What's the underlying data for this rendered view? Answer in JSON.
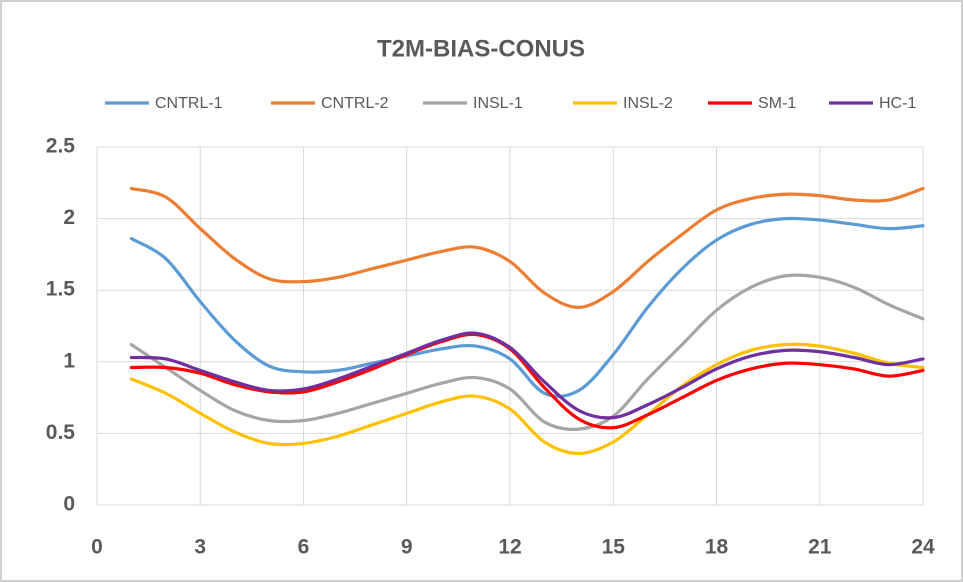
{
  "chart_data": {
    "type": "line",
    "title": "T2M-BIAS-CONUS",
    "x": [
      1,
      2,
      3,
      4,
      5,
      6,
      7,
      8,
      9,
      10,
      11,
      12,
      13,
      14,
      15,
      16,
      17,
      18,
      19,
      20,
      21,
      22,
      23,
      24
    ],
    "series": [
      {
        "name": "CNTRL-1",
        "color": "#5b9bd5",
        "values": [
          1.86,
          1.72,
          1.42,
          1.15,
          0.97,
          0.93,
          0.94,
          0.99,
          1.04,
          1.09,
          1.11,
          1.02,
          0.78,
          0.8,
          1.05,
          1.38,
          1.65,
          1.85,
          1.96,
          2.0,
          1.99,
          1.96,
          1.93,
          1.95
        ]
      },
      {
        "name": "CNTRL-2",
        "color": "#ed7d31",
        "values": [
          2.21,
          2.15,
          1.93,
          1.72,
          1.58,
          1.56,
          1.59,
          1.65,
          1.71,
          1.77,
          1.8,
          1.7,
          1.48,
          1.38,
          1.49,
          1.7,
          1.89,
          2.06,
          2.14,
          2.17,
          2.16,
          2.13,
          2.13,
          2.21
        ]
      },
      {
        "name": "INSL-1",
        "color": "#a5a5a5",
        "values": [
          1.12,
          0.96,
          0.8,
          0.66,
          0.59,
          0.59,
          0.64,
          0.71,
          0.78,
          0.85,
          0.89,
          0.81,
          0.58,
          0.53,
          0.62,
          0.88,
          1.12,
          1.36,
          1.52,
          1.6,
          1.59,
          1.52,
          1.4,
          1.3
        ]
      },
      {
        "name": "INSL-2",
        "color": "#ffc000",
        "values": [
          0.88,
          0.78,
          0.64,
          0.51,
          0.43,
          0.43,
          0.48,
          0.56,
          0.64,
          0.72,
          0.76,
          0.67,
          0.44,
          0.36,
          0.44,
          0.63,
          0.83,
          0.98,
          1.08,
          1.12,
          1.11,
          1.06,
          0.99,
          0.96
        ]
      },
      {
        "name": "SM-1",
        "color": "#ff0000",
        "values": [
          0.96,
          0.96,
          0.92,
          0.84,
          0.79,
          0.79,
          0.86,
          0.95,
          1.05,
          1.14,
          1.19,
          1.09,
          0.82,
          0.6,
          0.54,
          0.63,
          0.75,
          0.87,
          0.95,
          0.99,
          0.98,
          0.95,
          0.9,
          0.94
        ]
      },
      {
        "name": "HC-1",
        "color": "#7030a0",
        "values": [
          1.03,
          1.02,
          0.94,
          0.86,
          0.8,
          0.81,
          0.88,
          0.97,
          1.06,
          1.15,
          1.2,
          1.1,
          0.86,
          0.66,
          0.61,
          0.7,
          0.82,
          0.95,
          1.04,
          1.08,
          1.07,
          1.03,
          0.98,
          1.02
        ]
      }
    ],
    "xlim": [
      0,
      24
    ],
    "xticks": [
      0,
      3,
      6,
      9,
      12,
      15,
      18,
      21,
      24
    ],
    "ylim": [
      0,
      2.5
    ],
    "yticks": [
      0,
      0.5,
      1,
      1.5,
      2,
      2.5
    ],
    "grid": true,
    "smooth": true,
    "legend": "top"
  }
}
